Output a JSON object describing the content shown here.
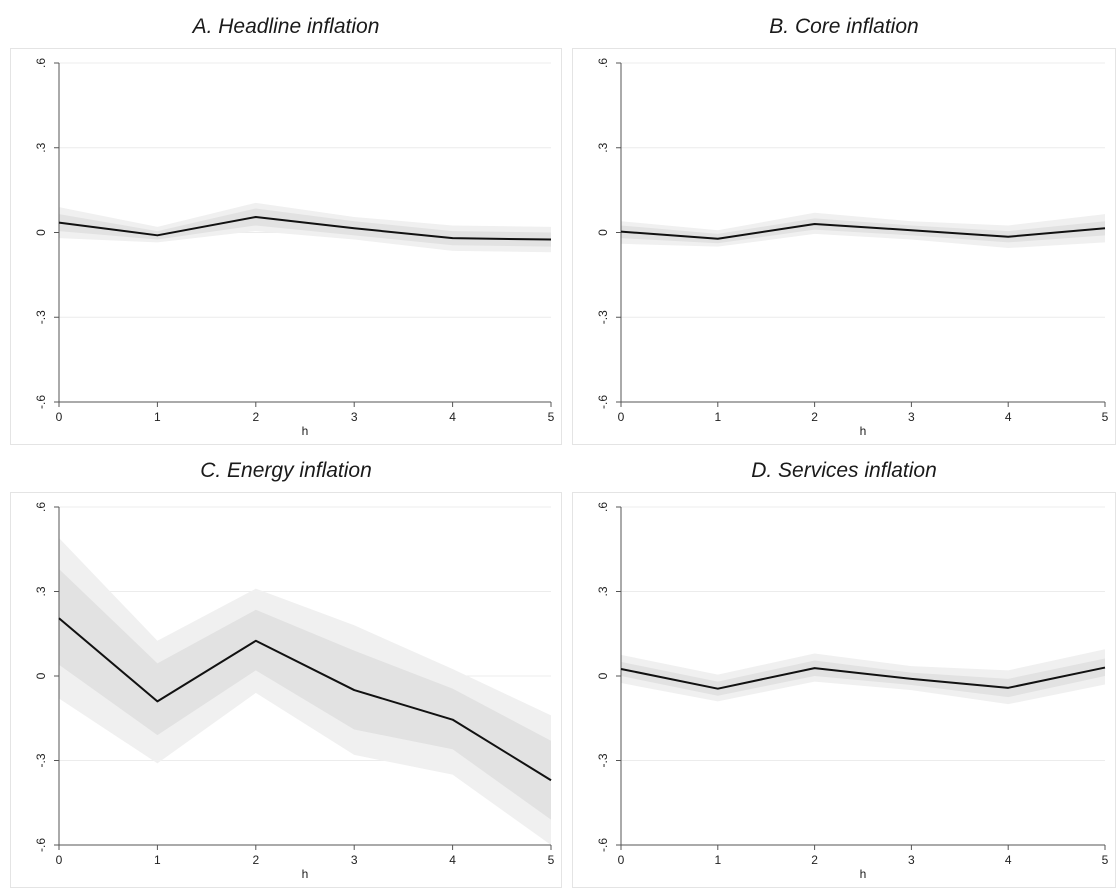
{
  "chart_data": [
    {
      "type": "line",
      "title": "A. Headline inflation",
      "xlabel": "h",
      "ylabel": "",
      "x": [
        0,
        1,
        2,
        3,
        4,
        5
      ],
      "x_ticks": [
        "0",
        "1",
        "2",
        "3",
        "4",
        "5"
      ],
      "y_ticks": [
        {
          "value": 0.6,
          "label": ".6"
        },
        {
          "value": 0.3,
          "label": ".3"
        },
        {
          "value": 0,
          "label": "0"
        },
        {
          "value": -0.3,
          "label": "-.3"
        },
        {
          "value": -0.6,
          "label": "-.6"
        }
      ],
      "xlim": [
        0,
        5
      ],
      "ylim": [
        -0.6,
        0.6
      ],
      "grid": true,
      "series": [
        {
          "values": [
            0.035,
            -0.01,
            0.055,
            0.015,
            -0.02,
            -0.025
          ]
        }
      ],
      "bands": [
        {
          "lower": [
            -0.02,
            -0.035,
            0.005,
            -0.025,
            -0.065,
            -0.07
          ],
          "upper": [
            0.09,
            0.02,
            0.105,
            0.055,
            0.025,
            0.02
          ]
        },
        {
          "lower": [
            0.005,
            -0.025,
            0.025,
            -0.01,
            -0.045,
            -0.05
          ],
          "upper": [
            0.065,
            0.005,
            0.085,
            0.04,
            0.005,
            0.0
          ]
        }
      ],
      "colors": {
        "line": "#111111",
        "outer_band": "#f0f0f0",
        "inner_band": "#e2e2e2"
      }
    },
    {
      "type": "line",
      "title": "B. Core inflation",
      "xlabel": "h",
      "ylabel": "",
      "x": [
        0,
        1,
        2,
        3,
        4,
        5
      ],
      "x_ticks": [
        "0",
        "1",
        "2",
        "3",
        "4",
        "5"
      ],
      "y_ticks": [
        {
          "value": 0.6,
          "label": ".6"
        },
        {
          "value": 0.3,
          "label": ".3"
        },
        {
          "value": 0,
          "label": "0"
        },
        {
          "value": -0.3,
          "label": "-.3"
        },
        {
          "value": -0.6,
          "label": "-.6"
        }
      ],
      "xlim": [
        0,
        5
      ],
      "ylim": [
        -0.6,
        0.6
      ],
      "grid": true,
      "series": [
        {
          "values": [
            0.003,
            -0.022,
            0.03,
            0.008,
            -0.015,
            0.015
          ]
        }
      ],
      "bands": [
        {
          "lower": [
            -0.04,
            -0.05,
            -0.005,
            -0.025,
            -0.055,
            -0.035
          ],
          "upper": [
            0.04,
            0.008,
            0.07,
            0.04,
            0.025,
            0.065
          ]
        },
        {
          "lower": [
            -0.02,
            -0.038,
            0.01,
            -0.01,
            -0.035,
            -0.01
          ],
          "upper": [
            0.025,
            -0.005,
            0.05,
            0.025,
            0.005,
            0.04
          ]
        }
      ],
      "colors": {
        "line": "#111111",
        "outer_band": "#f0f0f0",
        "inner_band": "#e2e2e2"
      }
    },
    {
      "type": "line",
      "title": "C. Energy inflation",
      "xlabel": "h",
      "ylabel": "",
      "x": [
        0,
        1,
        2,
        3,
        4,
        5
      ],
      "x_ticks": [
        "0",
        "1",
        "2",
        "3",
        "4",
        "5"
      ],
      "y_ticks": [
        {
          "value": 0.6,
          "label": ".6"
        },
        {
          "value": 0.3,
          "label": ".3"
        },
        {
          "value": 0,
          "label": "0"
        },
        {
          "value": -0.3,
          "label": "-.3"
        },
        {
          "value": -0.6,
          "label": "-.6"
        }
      ],
      "xlim": [
        0,
        5
      ],
      "ylim": [
        -0.6,
        0.6
      ],
      "grid": true,
      "series": [
        {
          "values": [
            0.205,
            -0.09,
            0.125,
            -0.05,
            -0.155,
            -0.37
          ]
        }
      ],
      "bands": [
        {
          "lower": [
            -0.08,
            -0.31,
            -0.06,
            -0.28,
            -0.35,
            -0.6
          ],
          "upper": [
            0.49,
            0.125,
            0.31,
            0.18,
            0.025,
            -0.14
          ]
        },
        {
          "lower": [
            0.04,
            -0.21,
            0.02,
            -0.19,
            -0.26,
            -0.51
          ],
          "upper": [
            0.38,
            0.045,
            0.235,
            0.09,
            -0.045,
            -0.23
          ]
        }
      ],
      "colors": {
        "line": "#111111",
        "outer_band": "#f0f0f0",
        "inner_band": "#e2e2e2"
      }
    },
    {
      "type": "line",
      "title": "D. Services inflation",
      "xlabel": "h",
      "ylabel": "",
      "x": [
        0,
        1,
        2,
        3,
        4,
        5
      ],
      "x_ticks": [
        "0",
        "1",
        "2",
        "3",
        "4",
        "5"
      ],
      "y_ticks": [
        {
          "value": 0.6,
          "label": ".6"
        },
        {
          "value": 0.3,
          "label": ".3"
        },
        {
          "value": 0,
          "label": "0"
        },
        {
          "value": -0.3,
          "label": "-.3"
        },
        {
          "value": -0.6,
          "label": "-.6"
        }
      ],
      "xlim": [
        0,
        5
      ],
      "ylim": [
        -0.6,
        0.6
      ],
      "grid": true,
      "series": [
        {
          "values": [
            0.025,
            -0.045,
            0.028,
            -0.01,
            -0.042,
            0.03
          ]
        }
      ],
      "bands": [
        {
          "lower": [
            -0.025,
            -0.09,
            -0.02,
            -0.05,
            -0.1,
            -0.03
          ],
          "upper": [
            0.075,
            0.005,
            0.08,
            0.035,
            0.02,
            0.095
          ]
        },
        {
          "lower": [
            0.0,
            -0.07,
            0.0,
            -0.032,
            -0.075,
            0.0
          ],
          "upper": [
            0.05,
            -0.02,
            0.055,
            0.012,
            -0.01,
            0.062
          ]
        }
      ],
      "colors": {
        "line": "#111111",
        "outer_band": "#f0f0f0",
        "inner_band": "#e2e2e2"
      }
    }
  ]
}
